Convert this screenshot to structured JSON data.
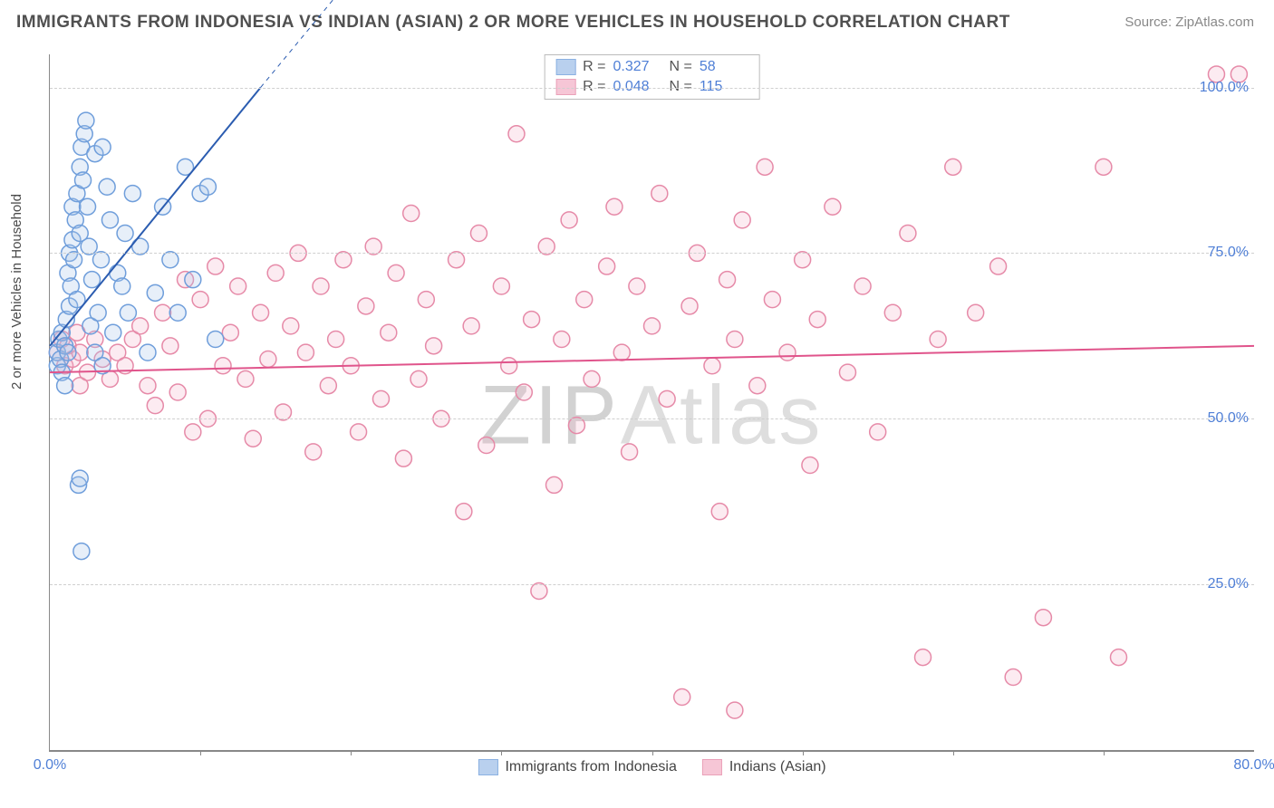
{
  "title": "IMMIGRANTS FROM INDONESIA VS INDIAN (ASIAN) 2 OR MORE VEHICLES IN HOUSEHOLD CORRELATION CHART",
  "source_label": "Source: ",
  "source_value": "ZipAtlas.com",
  "ylabel": "2 or more Vehicles in Household",
  "watermark_a": "ZIP",
  "watermark_b": "Atlas",
  "chart": {
    "type": "scatter",
    "xlim": [
      0,
      80
    ],
    "ylim": [
      0,
      105
    ],
    "background_color": "#ffffff",
    "grid_color": "#cfcfcf",
    "axis_color": "#888888",
    "tick_text_color": "#4f7fd6",
    "label_text_color": "#4a4a4a",
    "xticks": [
      {
        "v": 0,
        "label": "0.0%"
      },
      {
        "v": 80,
        "label": "80.0%"
      }
    ],
    "xtick_marks": [
      10,
      20,
      30,
      40,
      50,
      60,
      70
    ],
    "yticks": [
      {
        "v": 25,
        "label": "25.0%"
      },
      {
        "v": 50,
        "label": "50.0%"
      },
      {
        "v": 75,
        "label": "75.0%"
      },
      {
        "v": 100,
        "label": "100.0%"
      }
    ],
    "marker_radius": 9,
    "marker_stroke_width": 1.5,
    "marker_fill_opacity": 0.28,
    "series": [
      {
        "key": "indonesia",
        "name": "Immigrants from Indonesia",
        "color_stroke": "#6f9edb",
        "color_fill": "#a8c5ea",
        "r_label": "R =",
        "r": "0.327",
        "n_label": "N =",
        "n": "58",
        "trend": {
          "x1": 0,
          "y1": 61,
          "x2": 14,
          "y2": 100,
          "dash_x2": 22,
          "dash_y2": 122,
          "color": "#2b5cb0",
          "width": 2
        },
        "points": [
          [
            0.5,
            58
          ],
          [
            0.5,
            60
          ],
          [
            0.6,
            62
          ],
          [
            0.7,
            59
          ],
          [
            0.8,
            63
          ],
          [
            0.8,
            57
          ],
          [
            1.0,
            55
          ],
          [
            1.0,
            61
          ],
          [
            1.1,
            65
          ],
          [
            1.2,
            60
          ],
          [
            1.2,
            72
          ],
          [
            1.3,
            67
          ],
          [
            1.3,
            75
          ],
          [
            1.4,
            70
          ],
          [
            1.5,
            77
          ],
          [
            1.5,
            82
          ],
          [
            1.6,
            74
          ],
          [
            1.7,
            80
          ],
          [
            1.8,
            68
          ],
          [
            1.8,
            84
          ],
          [
            2.0,
            88
          ],
          [
            2.0,
            78
          ],
          [
            2.1,
            91
          ],
          [
            2.2,
            86
          ],
          [
            2.3,
            93
          ],
          [
            2.4,
            95
          ],
          [
            2.5,
            82
          ],
          [
            2.6,
            76
          ],
          [
            2.7,
            64
          ],
          [
            2.8,
            71
          ],
          [
            3.0,
            60
          ],
          [
            3.0,
            90
          ],
          [
            3.2,
            66
          ],
          [
            3.4,
            74
          ],
          [
            3.5,
            91
          ],
          [
            3.5,
            58
          ],
          [
            3.8,
            85
          ],
          [
            4.0,
            80
          ],
          [
            4.2,
            63
          ],
          [
            4.5,
            72
          ],
          [
            4.8,
            70
          ],
          [
            5.0,
            78
          ],
          [
            5.2,
            66
          ],
          [
            5.5,
            84
          ],
          [
            6.0,
            76
          ],
          [
            6.5,
            60
          ],
          [
            7.0,
            69
          ],
          [
            7.5,
            82
          ],
          [
            8.0,
            74
          ],
          [
            8.5,
            66
          ],
          [
            9.0,
            88
          ],
          [
            9.5,
            71
          ],
          [
            10.0,
            84
          ],
          [
            10.5,
            85
          ],
          [
            11.0,
            62
          ],
          [
            1.9,
            40
          ],
          [
            2.0,
            41
          ],
          [
            2.1,
            30
          ]
        ]
      },
      {
        "key": "indian",
        "name": "Indians (Asian)",
        "color_stroke": "#e68aa8",
        "color_fill": "#f5b8cc",
        "r_label": "R =",
        "r": "0.048",
        "n_label": "N =",
        "n": "115",
        "trend": {
          "x1": 0,
          "y1": 57,
          "x2": 80,
          "y2": 61,
          "color": "#e0548b",
          "width": 2
        },
        "points": [
          [
            0.5,
            60
          ],
          [
            0.8,
            62
          ],
          [
            1.0,
            58
          ],
          [
            1.2,
            61
          ],
          [
            1.5,
            59
          ],
          [
            1.8,
            63
          ],
          [
            2.0,
            60
          ],
          [
            2.0,
            55
          ],
          [
            2.5,
            57
          ],
          [
            3.0,
            62
          ],
          [
            3.5,
            59
          ],
          [
            4.0,
            56
          ],
          [
            4.5,
            60
          ],
          [
            5.0,
            58
          ],
          [
            5.5,
            62
          ],
          [
            6.0,
            64
          ],
          [
            6.5,
            55
          ],
          [
            7.0,
            52
          ],
          [
            7.5,
            66
          ],
          [
            8.0,
            61
          ],
          [
            8.5,
            54
          ],
          [
            9.0,
            71
          ],
          [
            9.5,
            48
          ],
          [
            10.0,
            68
          ],
          [
            10.5,
            50
          ],
          [
            11.0,
            73
          ],
          [
            11.5,
            58
          ],
          [
            12.0,
            63
          ],
          [
            12.5,
            70
          ],
          [
            13.0,
            56
          ],
          [
            13.5,
            47
          ],
          [
            14.0,
            66
          ],
          [
            14.5,
            59
          ],
          [
            15.0,
            72
          ],
          [
            15.5,
            51
          ],
          [
            16.0,
            64
          ],
          [
            16.5,
            75
          ],
          [
            17.0,
            60
          ],
          [
            17.5,
            45
          ],
          [
            18.0,
            70
          ],
          [
            18.5,
            55
          ],
          [
            19.0,
            62
          ],
          [
            19.5,
            74
          ],
          [
            20.0,
            58
          ],
          [
            20.5,
            48
          ],
          [
            21.0,
            67
          ],
          [
            21.5,
            76
          ],
          [
            22.0,
            53
          ],
          [
            22.5,
            63
          ],
          [
            23.0,
            72
          ],
          [
            23.5,
            44
          ],
          [
            24.0,
            81
          ],
          [
            24.5,
            56
          ],
          [
            25.0,
            68
          ],
          [
            25.5,
            61
          ],
          [
            26.0,
            50
          ],
          [
            27.0,
            74
          ],
          [
            27.5,
            36
          ],
          [
            28.0,
            64
          ],
          [
            28.5,
            78
          ],
          [
            29.0,
            46
          ],
          [
            30.0,
            70
          ],
          [
            30.5,
            58
          ],
          [
            31.0,
            93
          ],
          [
            31.5,
            54
          ],
          [
            32.0,
            65
          ],
          [
            32.5,
            24
          ],
          [
            33.0,
            76
          ],
          [
            33.5,
            40
          ],
          [
            34.0,
            62
          ],
          [
            34.5,
            80
          ],
          [
            35.0,
            49
          ],
          [
            35.5,
            68
          ],
          [
            36.0,
            56
          ],
          [
            37.0,
            73
          ],
          [
            37.5,
            82
          ],
          [
            38.0,
            60
          ],
          [
            38.5,
            45
          ],
          [
            39.0,
            70
          ],
          [
            40.0,
            64
          ],
          [
            40.5,
            84
          ],
          [
            41.0,
            53
          ],
          [
            42.0,
            8
          ],
          [
            42.5,
            67
          ],
          [
            43.0,
            75
          ],
          [
            44.0,
            58
          ],
          [
            44.5,
            36
          ],
          [
            45.0,
            71
          ],
          [
            45.5,
            6
          ],
          [
            45.5,
            62
          ],
          [
            46.0,
            80
          ],
          [
            47.0,
            55
          ],
          [
            47.5,
            88
          ],
          [
            48.0,
            68
          ],
          [
            49.0,
            60
          ],
          [
            50.0,
            74
          ],
          [
            50.5,
            43
          ],
          [
            51.0,
            65
          ],
          [
            52.0,
            82
          ],
          [
            53.0,
            57
          ],
          [
            54.0,
            70
          ],
          [
            55.0,
            48
          ],
          [
            56.0,
            66
          ],
          [
            57.0,
            78
          ],
          [
            58.0,
            14
          ],
          [
            59.0,
            62
          ],
          [
            60.0,
            88
          ],
          [
            61.5,
            66
          ],
          [
            63.0,
            73
          ],
          [
            64.0,
            11
          ],
          [
            66.0,
            20
          ],
          [
            70.0,
            88
          ],
          [
            71.0,
            14
          ],
          [
            77.5,
            102
          ],
          [
            79.0,
            102
          ]
        ]
      }
    ]
  },
  "bottom_legend": {
    "items": [
      {
        "key": "indonesia",
        "label": "Immigrants from Indonesia"
      },
      {
        "key": "indian",
        "label": "Indians (Asian)"
      }
    ]
  }
}
